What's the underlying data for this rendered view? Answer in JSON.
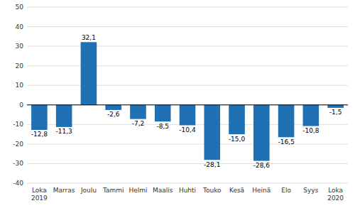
{
  "chart_data": {
    "type": "bar",
    "categories": [
      "Loka\n2019",
      "Marras",
      "Joulu",
      "Tammi",
      "Helmi",
      "Maalis",
      "Huhti",
      "Touko",
      "Kesä",
      "Heinä",
      "Elo",
      "Syys",
      "Loka\n2020"
    ],
    "values": [
      -12.8,
      -11.3,
      32.1,
      -2.6,
      -7.2,
      -8.5,
      -10.4,
      -28.1,
      -15.0,
      -28.6,
      -16.5,
      -10.8,
      -1.5
    ],
    "value_labels": [
      "-12,8",
      "-11,3",
      "32,1",
      "-2,6",
      "-7,2",
      "-8,5",
      "-10,4",
      "-28,1",
      "-15,0",
      "-28,6",
      "-16,5",
      "-10,8",
      "-1,5"
    ],
    "data_labels": true,
    "color": "#2070b4",
    "ylim": [
      -40,
      50
    ],
    "yticks": [
      -40,
      -30,
      -20,
      -10,
      0,
      10,
      20,
      30,
      40,
      50
    ],
    "grid": true
  }
}
